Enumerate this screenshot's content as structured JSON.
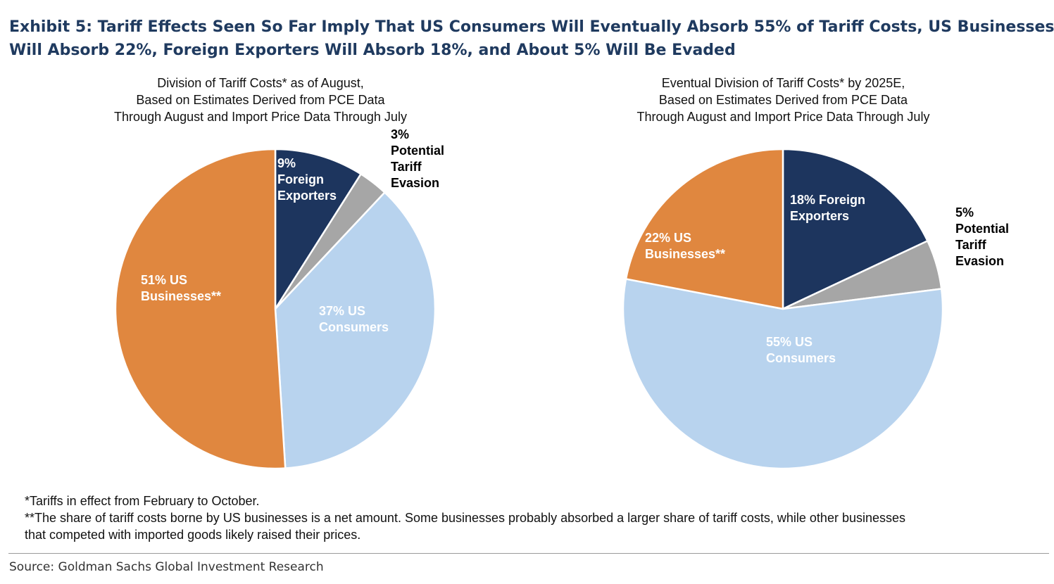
{
  "exhibit_title": {
    "line1": "Exhibit 5: Tariff Effects Seen So Far Imply That US Consumers Will Eventually Absorb 55% of Tariff Costs, US Businesses",
    "line2": "Will Absorb 22%, Foreign Exporters Will Absorb 18%, and About 5% Will Be Evaded"
  },
  "chart_data": [
    {
      "type": "pie",
      "title": [
        "Division of Tariff Costs* as of August,",
        "Based on Estimates Derived from PCE Data",
        "Through August and Import Price Data Through July"
      ],
      "slices": [
        {
          "label": "Foreign Exporters",
          "value": 9,
          "color": "#1d355e",
          "label_color": "#ffffff",
          "label_lines": [
            "9%",
            "Foreign",
            "Exporters"
          ]
        },
        {
          "label": "Potential Tariff Evasion",
          "value": 3,
          "color": "#a6a6a6",
          "label_color": "#000000",
          "label_lines": [
            "3%",
            "Potential",
            "Tariff",
            "Evasion"
          ]
        },
        {
          "label": "US Consumers",
          "value": 37,
          "color": "#b8d3ee",
          "label_color": "#ffffff",
          "label_lines": [
            "37% US",
            "Consumers"
          ]
        },
        {
          "label": "US Businesses**",
          "value": 51,
          "color": "#e0873f",
          "label_color": "#ffffff",
          "label_lines": [
            "51% US",
            "Businesses**"
          ]
        }
      ]
    },
    {
      "type": "pie",
      "title": [
        "Eventual Division of Tariff Costs* by 2025E,",
        "Based on Estimates Derived from PCE Data",
        "Through August and Import Price Data Through July"
      ],
      "slices": [
        {
          "label": "Foreign Exporters",
          "value": 18,
          "color": "#1d355e",
          "label_color": "#ffffff",
          "label_lines": [
            "18% Foreign",
            "Exporters"
          ]
        },
        {
          "label": "Potential Tariff Evasion",
          "value": 5,
          "color": "#a6a6a6",
          "label_color": "#000000",
          "label_lines": [
            "5%",
            "Potential",
            "Tariff",
            "Evasion"
          ]
        },
        {
          "label": "US Consumers",
          "value": 55,
          "color": "#b8d3ee",
          "label_color": "#ffffff",
          "label_lines": [
            "55% US",
            "Consumers"
          ]
        },
        {
          "label": "US Businesses**",
          "value": 22,
          "color": "#e0873f",
          "label_color": "#ffffff",
          "label_lines": [
            "22% US",
            "Businesses**"
          ]
        }
      ]
    }
  ],
  "footnotes": {
    "note1": "*Tariffs in effect from February to October.",
    "note2": "**The share of tariff costs borne by US businesses is a net amount. Some businesses probably absorbed a larger share of tariff costs, while other businesses",
    "note2_cont": "that competed with imported goods likely raised their prices."
  },
  "source": "Source: Goldman Sachs Global Investment Research"
}
